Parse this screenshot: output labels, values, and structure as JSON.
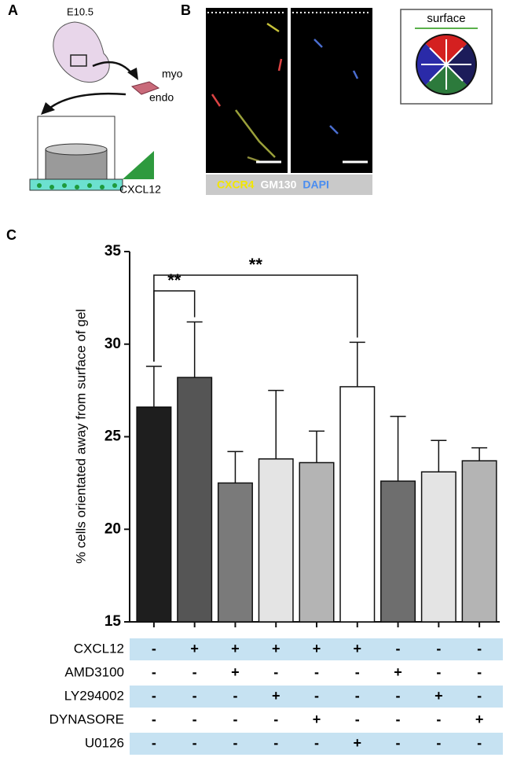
{
  "panels": {
    "a": "A",
    "b": "B",
    "c": "C"
  },
  "panel_a": {
    "stage": "E10.5",
    "myo": "myo",
    "endo": "endo",
    "gradient": "CXCL12"
  },
  "panel_b": {
    "stains": [
      {
        "name": "CXCR4",
        "color": "#f2e600"
      },
      {
        "name": "GM130",
        "color": "#ffffff"
      },
      {
        "name": "DAPI",
        "color": "#4a8df0"
      }
    ]
  },
  "schematic": {
    "label": "surface"
  },
  "chart_data": {
    "type": "bar",
    "y_label": "% cells orientated away from surface of gel",
    "categories": [
      null,
      null,
      null,
      null,
      null,
      null,
      null,
      null,
      null
    ],
    "values": [
      26.6,
      28.2,
      22.5,
      23.8,
      23.6,
      27.7,
      22.6,
      23.1,
      23.7
    ],
    "errors": [
      2.2,
      3.0,
      1.7,
      3.7,
      1.7,
      2.4,
      3.5,
      1.7,
      0.7
    ],
    "colors": [
      "#1e1e1e",
      "#555555",
      "#7a7a7a",
      "#e4e4e4",
      "#b4b4b4",
      "#ffffff",
      "#6e6e6e",
      "#e4e4e4",
      "#b4b4b4"
    ],
    "ylim": [
      15,
      35
    ],
    "yticks": [
      15,
      20,
      25,
      30,
      35
    ],
    "annotations": [
      "**",
      "**"
    ]
  },
  "treatments": [
    {
      "name": "CXCL12",
      "signs": [
        "-",
        "+",
        "+",
        "+",
        "+",
        "+",
        "-",
        "-",
        "-"
      ]
    },
    {
      "name": "AMD3100",
      "signs": [
        "-",
        "-",
        "+",
        "-",
        "-",
        "-",
        "+",
        "-",
        "-"
      ]
    },
    {
      "name": "LY294002",
      "signs": [
        "-",
        "-",
        "-",
        "+",
        "-",
        "-",
        "-",
        "+",
        "-"
      ]
    },
    {
      "name": "DYNASORE",
      "signs": [
        "-",
        "-",
        "-",
        "-",
        "+",
        "-",
        "-",
        "-",
        "+"
      ]
    },
    {
      "name": "U0126",
      "signs": [
        "-",
        "-",
        "-",
        "-",
        "-",
        "+",
        "-",
        "-",
        "-"
      ]
    }
  ]
}
